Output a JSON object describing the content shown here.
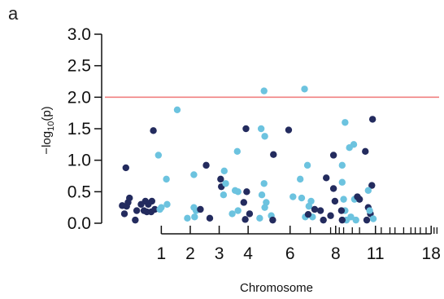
{
  "panel_label": "a",
  "chart_data": {
    "type": "scatter",
    "title": "",
    "xlabel": "Chromosome",
    "ylabel_parts": {
      "pre": "−log",
      "sub": "10",
      "post": "(p)"
    },
    "ylim": [
      0,
      3.0
    ],
    "yticks": [
      "0.0",
      "0.5",
      "1.0",
      "1.5",
      "2.0",
      "2.5",
      "3.0"
    ],
    "xticks": [
      {
        "label": "1",
        "pos": 3
      },
      {
        "label": "2",
        "pos": 5
      },
      {
        "label": "3",
        "pos": 7
      },
      {
        "label": "4",
        "pos": 9
      },
      {
        "label": "6",
        "pos": 11.9
      },
      {
        "label": "8",
        "pos": 15.05
      },
      {
        "label": "11",
        "pos": 17.8
      },
      {
        "label": "18",
        "pos": 21.65
      }
    ],
    "xminor_ticks": [
      13.3,
      14.7,
      15.3,
      15.6,
      16.2,
      16.7,
      18.2,
      18.8,
      19.15,
      19.75,
      20.25,
      20.55,
      20.9,
      21.3,
      21.85,
      22.05
    ],
    "xlim": [
      0,
      22.2
    ],
    "threshold": {
      "y": 2.0,
      "color": "#f08080"
    },
    "series_colors": {
      "dark": "#232b5e",
      "light": "#6cc3df"
    },
    "points": [
      {
        "x": 0.3,
        "y": 0.28,
        "s": "dark"
      },
      {
        "x": 0.45,
        "y": 0.15,
        "s": "dark"
      },
      {
        "x": 0.55,
        "y": 0.88,
        "s": "dark"
      },
      {
        "x": 0.6,
        "y": 0.27,
        "s": "dark"
      },
      {
        "x": 0.7,
        "y": 0.33,
        "s": "dark"
      },
      {
        "x": 0.8,
        "y": 0.4,
        "s": "dark"
      },
      {
        "x": 1.2,
        "y": 0.05,
        "s": "dark"
      },
      {
        "x": 1.3,
        "y": 0.2,
        "s": "dark"
      },
      {
        "x": 1.6,
        "y": 0.3,
        "s": "dark"
      },
      {
        "x": 1.8,
        "y": 0.2,
        "s": "dark"
      },
      {
        "x": 1.9,
        "y": 0.35,
        "s": "dark"
      },
      {
        "x": 2.0,
        "y": 0.18,
        "s": "dark"
      },
      {
        "x": 2.1,
        "y": 0.3,
        "s": "dark"
      },
      {
        "x": 2.3,
        "y": 0.18,
        "s": "dark"
      },
      {
        "x": 2.35,
        "y": 0.35,
        "s": "dark"
      },
      {
        "x": 2.45,
        "y": 1.47,
        "s": "dark"
      },
      {
        "x": 2.55,
        "y": 0.22,
        "s": "dark"
      },
      {
        "x": 2.8,
        "y": 1.08,
        "s": "light"
      },
      {
        "x": 2.9,
        "y": 0.22,
        "s": "light"
      },
      {
        "x": 3.0,
        "y": 0.25,
        "s": "light"
      },
      {
        "x": 3.35,
        "y": 0.7,
        "s": "light"
      },
      {
        "x": 3.4,
        "y": 0.3,
        "s": "light"
      },
      {
        "x": 4.1,
        "y": 1.8,
        "s": "light"
      },
      {
        "x": 4.8,
        "y": 0.08,
        "s": "light"
      },
      {
        "x": 5.25,
        "y": 0.77,
        "s": "light"
      },
      {
        "x": 5.25,
        "y": 0.25,
        "s": "light"
      },
      {
        "x": 5.3,
        "y": 0.1,
        "s": "light"
      },
      {
        "x": 5.4,
        "y": 0.2,
        "s": "light"
      },
      {
        "x": 5.7,
        "y": 0.22,
        "s": "dark"
      },
      {
        "x": 6.1,
        "y": 0.92,
        "s": "dark"
      },
      {
        "x": 6.35,
        "y": 0.08,
        "s": "dark"
      },
      {
        "x": 7.1,
        "y": 0.7,
        "s": "dark"
      },
      {
        "x": 7.15,
        "y": 0.58,
        "s": "dark"
      },
      {
        "x": 7.3,
        "y": 0.45,
        "s": "light"
      },
      {
        "x": 7.35,
        "y": 0.83,
        "s": "light"
      },
      {
        "x": 7.45,
        "y": 0.63,
        "s": "light"
      },
      {
        "x": 7.9,
        "y": 0.15,
        "s": "light"
      },
      {
        "x": 8.1,
        "y": 0.52,
        "s": "light"
      },
      {
        "x": 8.25,
        "y": 1.14,
        "s": "light"
      },
      {
        "x": 8.3,
        "y": 0.2,
        "s": "light"
      },
      {
        "x": 8.3,
        "y": 0.5,
        "s": "light"
      },
      {
        "x": 8.7,
        "y": 0.33,
        "s": "dark"
      },
      {
        "x": 8.8,
        "y": 0.06,
        "s": "dark"
      },
      {
        "x": 8.85,
        "y": 1.5,
        "s": "dark"
      },
      {
        "x": 8.9,
        "y": 0.5,
        "s": "dark"
      },
      {
        "x": 9.1,
        "y": 0.15,
        "s": "dark"
      },
      {
        "x": 9.8,
        "y": 0.08,
        "s": "light"
      },
      {
        "x": 9.9,
        "y": 1.5,
        "s": "light"
      },
      {
        "x": 9.95,
        "y": 0.45,
        "s": "light"
      },
      {
        "x": 10.1,
        "y": 2.1,
        "s": "light"
      },
      {
        "x": 10.1,
        "y": 0.63,
        "s": "light"
      },
      {
        "x": 10.15,
        "y": 0.25,
        "s": "light"
      },
      {
        "x": 10.15,
        "y": 1.38,
        "s": "light"
      },
      {
        "x": 10.25,
        "y": 0.33,
        "s": "light"
      },
      {
        "x": 10.6,
        "y": 0.12,
        "s": "light"
      },
      {
        "x": 10.7,
        "y": 0.05,
        "s": "dark"
      },
      {
        "x": 10.75,
        "y": 1.09,
        "s": "dark"
      },
      {
        "x": 11.8,
        "y": 1.48,
        "s": "dark"
      },
      {
        "x": 12.1,
        "y": 0.42,
        "s": "light"
      },
      {
        "x": 12.6,
        "y": 0.7,
        "s": "light"
      },
      {
        "x": 12.7,
        "y": 0.4,
        "s": "light"
      },
      {
        "x": 12.9,
        "y": 2.13,
        "s": "light"
      },
      {
        "x": 12.95,
        "y": 0.1,
        "s": "light"
      },
      {
        "x": 13.1,
        "y": 0.92,
        "s": "light"
      },
      {
        "x": 13.2,
        "y": 0.27,
        "s": "light"
      },
      {
        "x": 13.35,
        "y": 0.35,
        "s": "light"
      },
      {
        "x": 13.45,
        "y": 0.1,
        "s": "light"
      },
      {
        "x": 13.15,
        "y": 0.14,
        "s": "dark"
      },
      {
        "x": 13.6,
        "y": 0.22,
        "s": "dark"
      },
      {
        "x": 14.0,
        "y": 0.2,
        "s": "dark"
      },
      {
        "x": 14.2,
        "y": 0.05,
        "s": "dark"
      },
      {
        "x": 14.4,
        "y": 0.72,
        "s": "dark"
      },
      {
        "x": 14.7,
        "y": 0.12,
        "s": "dark"
      },
      {
        "x": 14.9,
        "y": 1.08,
        "s": "dark"
      },
      {
        "x": 14.9,
        "y": 0.55,
        "s": "dark"
      },
      {
        "x": 15.0,
        "y": 0.35,
        "s": "dark"
      },
      {
        "x": 15.5,
        "y": 0.92,
        "s": "light"
      },
      {
        "x": 15.5,
        "y": 0.65,
        "s": "light"
      },
      {
        "x": 15.6,
        "y": 0.38,
        "s": "light"
      },
      {
        "x": 15.7,
        "y": 1.6,
        "s": "light"
      },
      {
        "x": 15.7,
        "y": 0.2,
        "s": "light"
      },
      {
        "x": 15.8,
        "y": 0.05,
        "s": "light"
      },
      {
        "x": 16.0,
        "y": 1.2,
        "s": "light"
      },
      {
        "x": 16.1,
        "y": 0.1,
        "s": "light"
      },
      {
        "x": 16.3,
        "y": 1.25,
        "s": "light"
      },
      {
        "x": 16.35,
        "y": 0.38,
        "s": "light"
      },
      {
        "x": 16.45,
        "y": 0.05,
        "s": "light"
      },
      {
        "x": 15.45,
        "y": 0.2,
        "s": "dark"
      },
      {
        "x": 15.5,
        "y": 0.05,
        "s": "dark"
      },
      {
        "x": 16.55,
        "y": 0.42,
        "s": "dark"
      },
      {
        "x": 16.7,
        "y": 0.38,
        "s": "dark"
      },
      {
        "x": 17.1,
        "y": 1.14,
        "s": "dark"
      },
      {
        "x": 17.2,
        "y": 0.05,
        "s": "dark"
      },
      {
        "x": 17.3,
        "y": 0.25,
        "s": "dark"
      },
      {
        "x": 17.45,
        "y": 0.15,
        "s": "dark"
      },
      {
        "x": 17.55,
        "y": 0.6,
        "s": "dark"
      },
      {
        "x": 17.6,
        "y": 1.65,
        "s": "dark"
      },
      {
        "x": 17.3,
        "y": 0.52,
        "s": "light"
      },
      {
        "x": 17.4,
        "y": 0.2,
        "s": "light"
      },
      {
        "x": 17.65,
        "y": 0.07,
        "s": "light"
      }
    ]
  }
}
